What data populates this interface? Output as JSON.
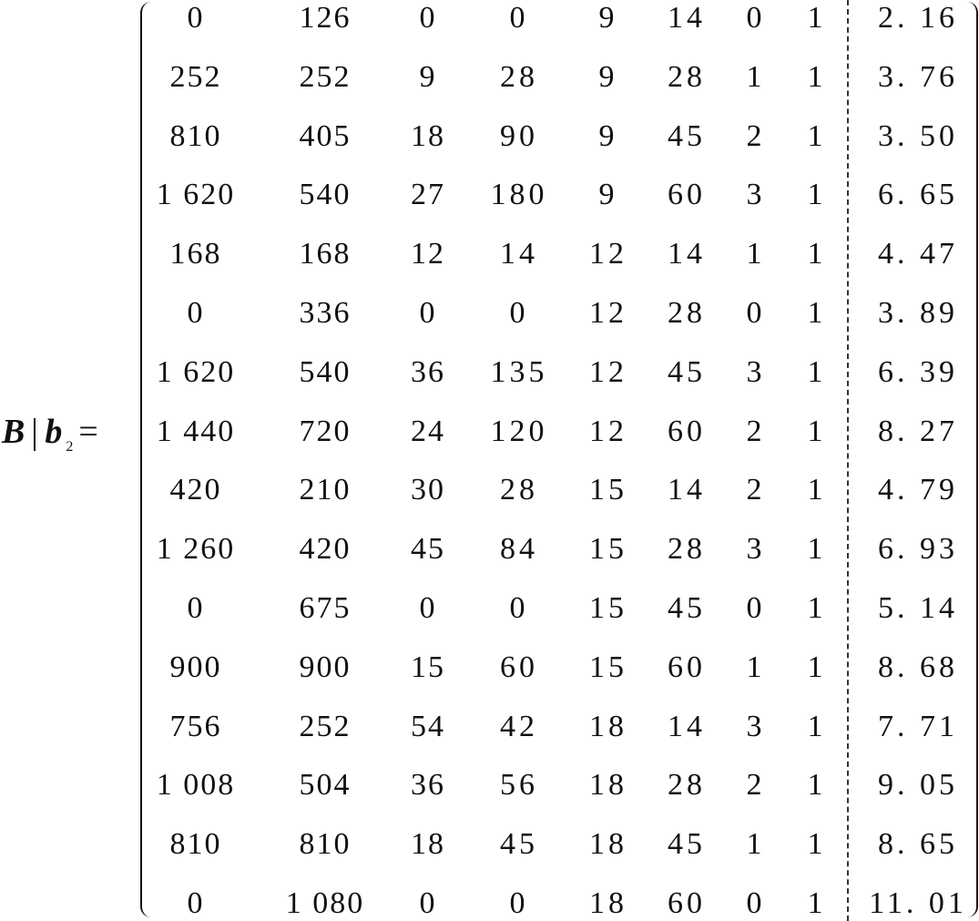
{
  "equation": {
    "lhs_matrix": "B",
    "separator": "|",
    "lhs_vector": "b",
    "lhs_subscript": "2",
    "equals": "="
  },
  "matrix": {
    "rows": [
      [
        "0",
        "126",
        "0",
        "0",
        "9",
        "14",
        "0",
        "1",
        "2. 16"
      ],
      [
        "252",
        "252",
        "9",
        "28",
        "9",
        "28",
        "1",
        "1",
        "3. 76"
      ],
      [
        "810",
        "405",
        "18",
        "90",
        "9",
        "45",
        "2",
        "1",
        "3. 50"
      ],
      [
        "1 620",
        "540",
        "27",
        "180",
        "9",
        "60",
        "3",
        "1",
        "6. 65"
      ],
      [
        "168",
        "168",
        "12",
        "14",
        "12",
        "14",
        "1",
        "1",
        "4. 47"
      ],
      [
        "0",
        "336",
        "0",
        "0",
        "12",
        "28",
        "0",
        "1",
        "3. 89"
      ],
      [
        "1 620",
        "540",
        "36",
        "135",
        "12",
        "45",
        "3",
        "1",
        "6. 39"
      ],
      [
        "1 440",
        "720",
        "24",
        "120",
        "12",
        "60",
        "2",
        "1",
        "8. 27"
      ],
      [
        "420",
        "210",
        "30",
        "28",
        "15",
        "14",
        "2",
        "1",
        "4. 79"
      ],
      [
        "1 260",
        "420",
        "45",
        "84",
        "15",
        "28",
        "3",
        "1",
        "6. 93"
      ],
      [
        "0",
        "675",
        "0",
        "0",
        "15",
        "45",
        "0",
        "1",
        "5. 14"
      ],
      [
        "900",
        "900",
        "15",
        "60",
        "15",
        "60",
        "1",
        "1",
        "8. 68"
      ],
      [
        "756",
        "252",
        "54",
        "42",
        "18",
        "14",
        "3",
        "1",
        "7. 71"
      ],
      [
        "1 008",
        "504",
        "36",
        "56",
        "18",
        "28",
        "2",
        "1",
        "9. 05"
      ],
      [
        "810",
        "810",
        "18",
        "45",
        "18",
        "45",
        "1",
        "1",
        "8. 65"
      ],
      [
        "0",
        "1 080",
        "0",
        "0",
        "18",
        "60",
        "0",
        "1",
        "11. 01"
      ]
    ]
  }
}
